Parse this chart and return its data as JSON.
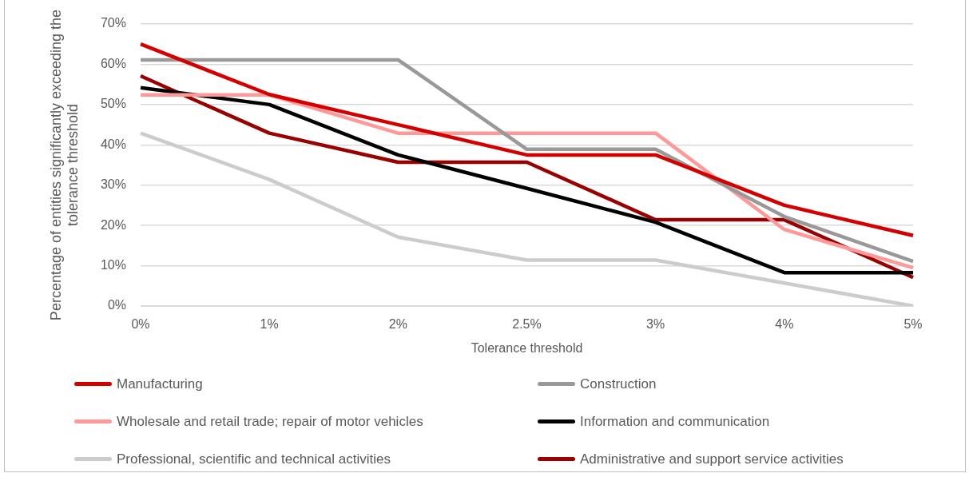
{
  "chart_data": {
    "type": "line",
    "xlabel": "Tolerance threshold",
    "ylabel": "Percentage of entities significantly exceeding the tolerance threshold",
    "categories": [
      "0%",
      "1%",
      "2%",
      "2.5%",
      "3%",
      "4%",
      "5%"
    ],
    "series": [
      {
        "name": "Manufacturing",
        "color": "#d40000",
        "values": [
          65,
          52.5,
          45,
          37.5,
          37.5,
          25,
          17.5
        ]
      },
      {
        "name": "Construction",
        "color": "#999999",
        "values": [
          61.1,
          61.1,
          61.1,
          38.9,
          38.9,
          22.2,
          11.1
        ]
      },
      {
        "name": "Wholesale and retail trade; repair of motor vehicles",
        "color": "#ff9999",
        "values": [
          52.4,
          52.4,
          42.9,
          42.9,
          42.9,
          19.0,
          9.5
        ]
      },
      {
        "name": "Information and communication",
        "color": "#000000",
        "values": [
          54.2,
          50,
          37.5,
          29.2,
          20.8,
          8.3,
          8.3
        ]
      },
      {
        "name": "Professional, scientific and technical activities",
        "color": "#cccccc",
        "values": [
          42.9,
          31.4,
          17.1,
          11.4,
          11.4,
          5.7,
          0
        ]
      },
      {
        "name": "Administrative and support service activities",
        "color": "#990000",
        "values": [
          57.1,
          42.9,
          35.7,
          35.7,
          21.4,
          21.4,
          7.1
        ]
      }
    ],
    "ylim": [
      0,
      70
    ],
    "yticks": [
      {
        "value": 0,
        "label": "0%"
      },
      {
        "value": 10,
        "label": "10%"
      },
      {
        "value": 20,
        "label": "20%"
      },
      {
        "value": 30,
        "label": "30%"
      },
      {
        "value": 40,
        "label": "40%"
      },
      {
        "value": 50,
        "label": "50%"
      },
      {
        "value": 60,
        "label": "60%"
      },
      {
        "value": 70,
        "label": "70%"
      }
    ],
    "grid": "y",
    "legend": "bottom",
    "marker": "none",
    "line_style": "solid"
  }
}
